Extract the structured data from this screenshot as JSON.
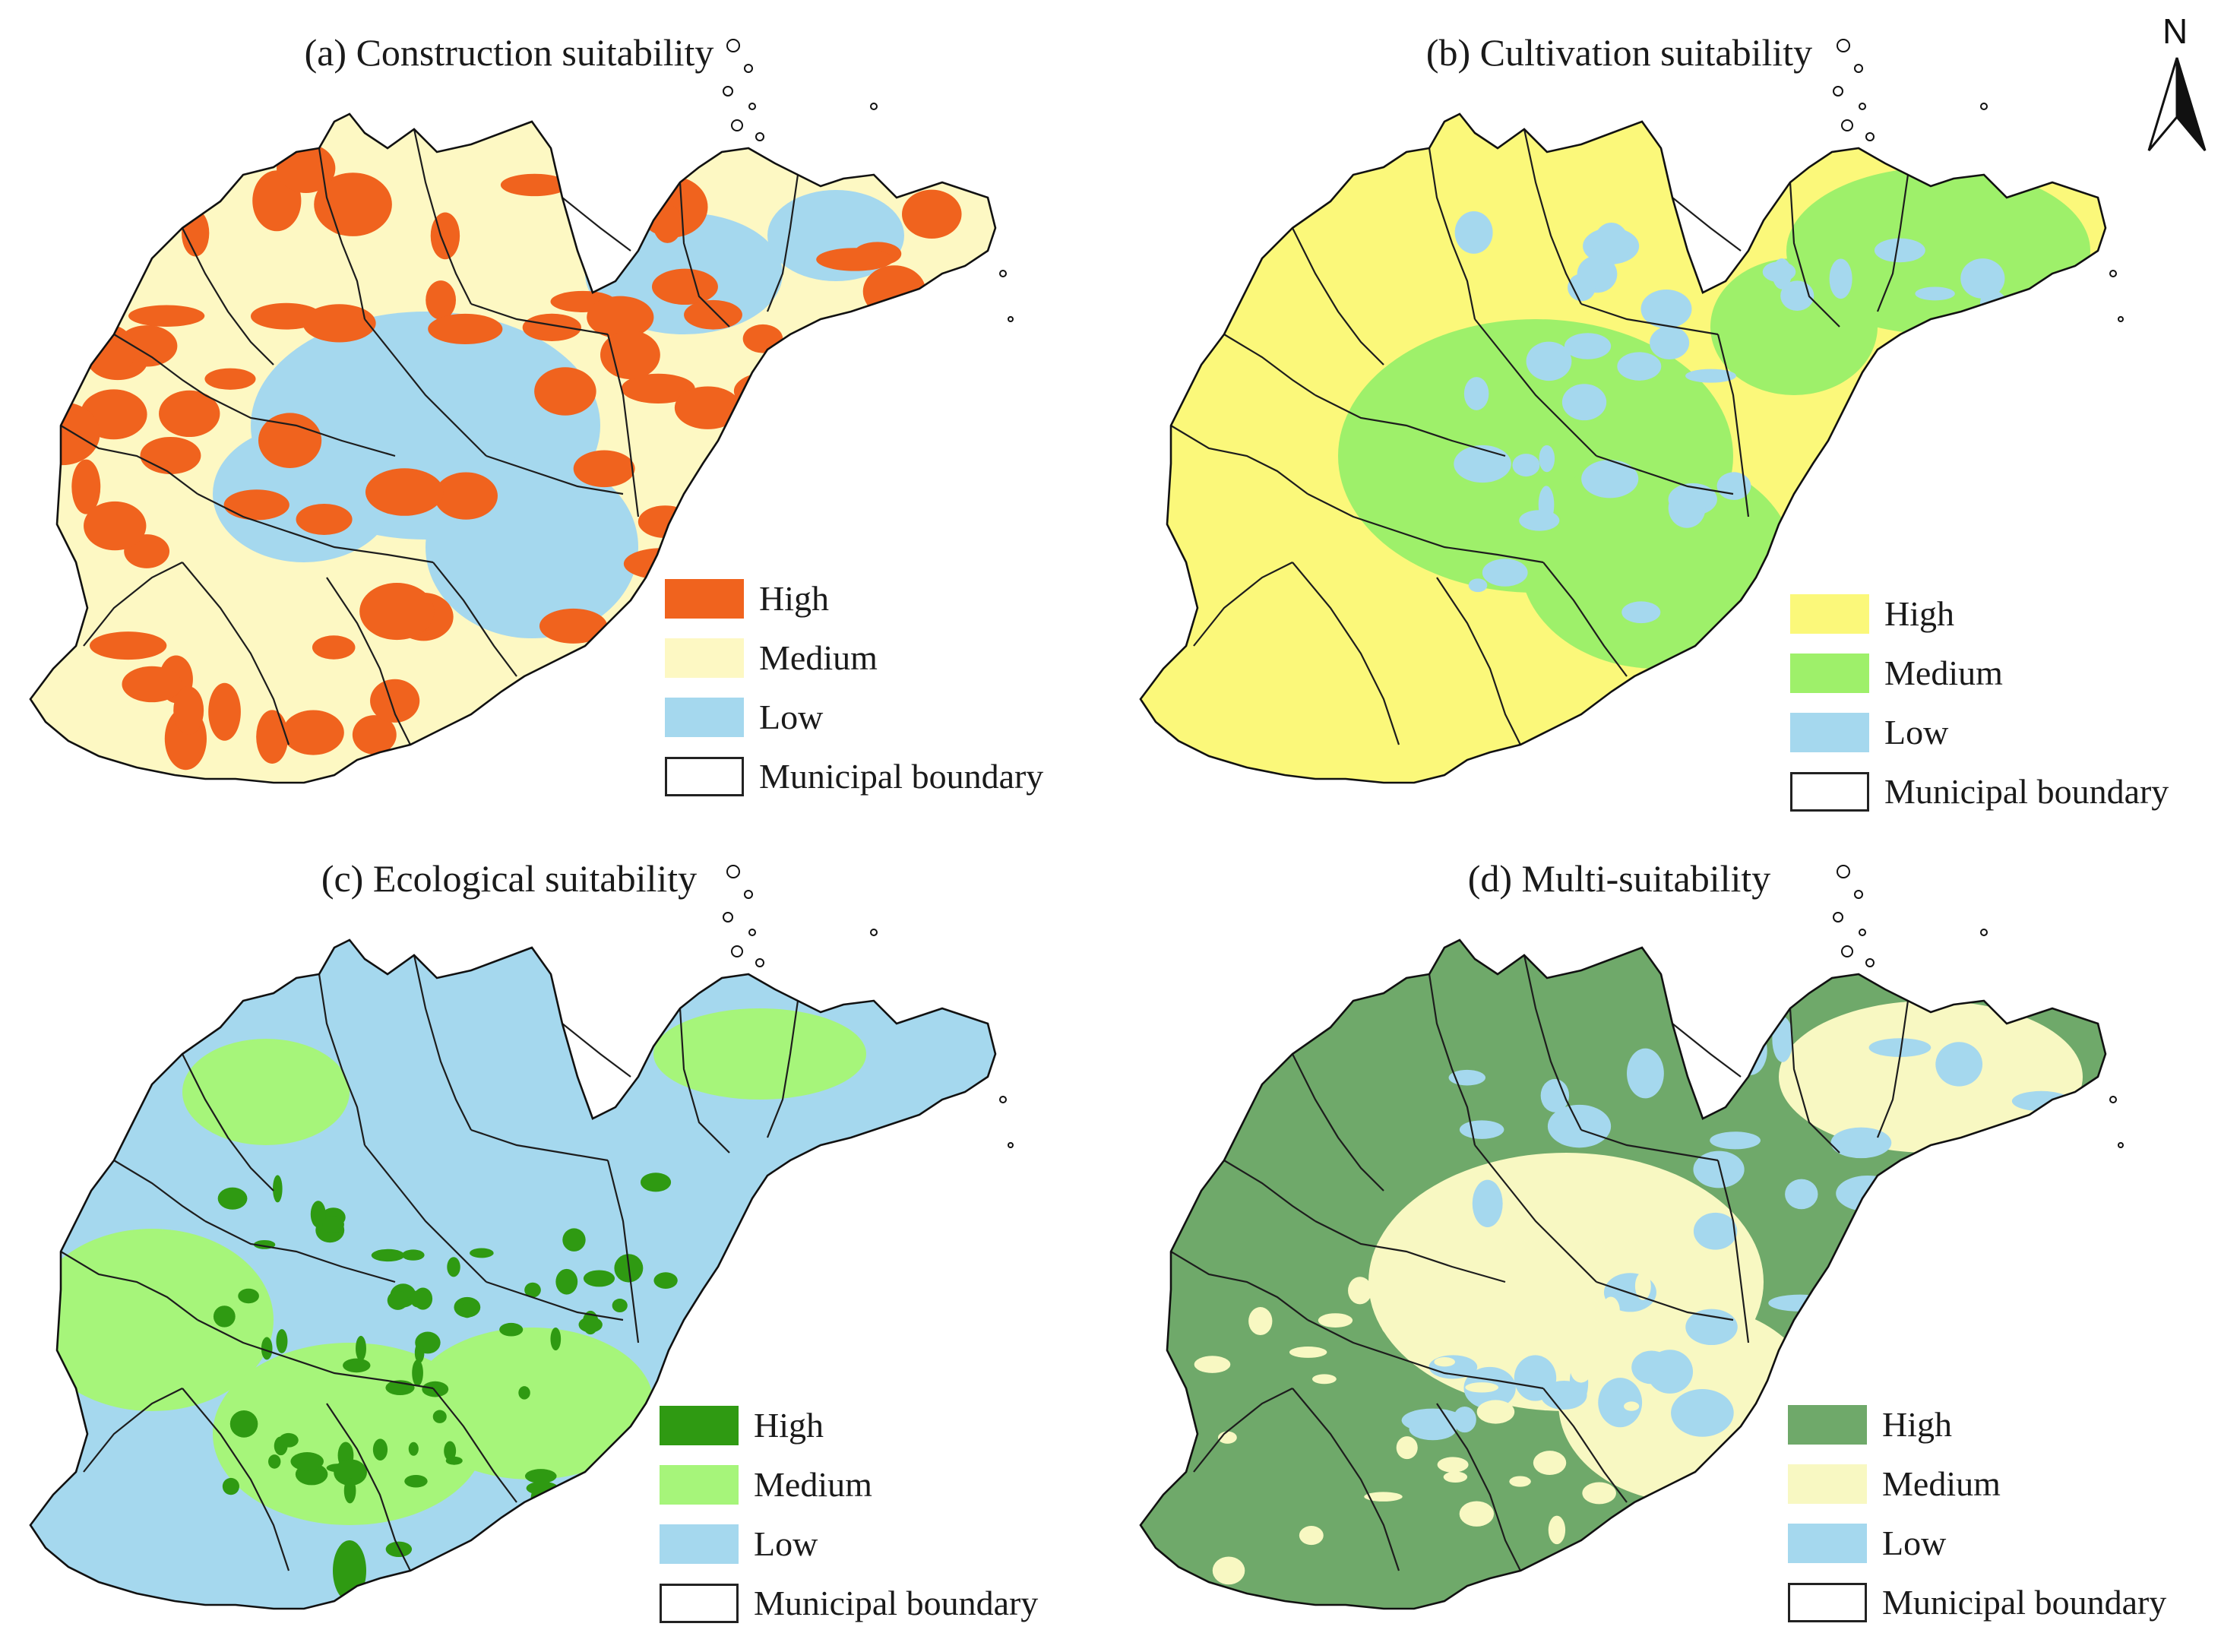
{
  "panels": [
    {
      "title": "(a) Construction suitability",
      "colors": {
        "high": "#f0631e",
        "medium": "#fdf8c3",
        "low": "#a5d8ee"
      },
      "legend": [
        {
          "label": "High",
          "color": "#f0631e"
        },
        {
          "label": "Medium",
          "color": "#fdf8c3"
        },
        {
          "label": "Low",
          "color": "#a5d8ee"
        },
        {
          "label": "Municipal boundary",
          "color": "#ffffff"
        }
      ]
    },
    {
      "title": "(b) Cultivation suitability",
      "colors": {
        "high": "#fbf87a",
        "medium": "#9ef06a",
        "low": "#a5d8ee"
      },
      "legend": [
        {
          "label": "High",
          "color": "#fbf87a"
        },
        {
          "label": "Medium",
          "color": "#9ef06a"
        },
        {
          "label": "Low",
          "color": "#a5d8ee"
        },
        {
          "label": "Municipal boundary",
          "color": "#ffffff"
        }
      ]
    },
    {
      "title": "(c) Ecological suitability",
      "colors": {
        "high": "#2f9a12",
        "medium": "#a6f57a",
        "low": "#a5d8ee"
      },
      "legend": [
        {
          "label": "High",
          "color": "#2f9a12"
        },
        {
          "label": "Medium",
          "color": "#a6f57a"
        },
        {
          "label": "Low",
          "color": "#a5d8ee"
        },
        {
          "label": "Municipal boundary",
          "color": "#ffffff"
        }
      ]
    },
    {
      "title": "(d) Multi-suitability",
      "colors": {
        "high": "#6fa96a",
        "medium": "#f8f8c2",
        "low": "#a5d8ee"
      },
      "legend": [
        {
          "label": "High",
          "color": "#6fa96a"
        },
        {
          "label": "Medium",
          "color": "#f8f8c2"
        },
        {
          "label": "Low",
          "color": "#a5d8ee"
        },
        {
          "label": "Municipal boundary",
          "color": "#ffffff"
        }
      ]
    }
  ],
  "north_arrow": {
    "letter": "N"
  }
}
